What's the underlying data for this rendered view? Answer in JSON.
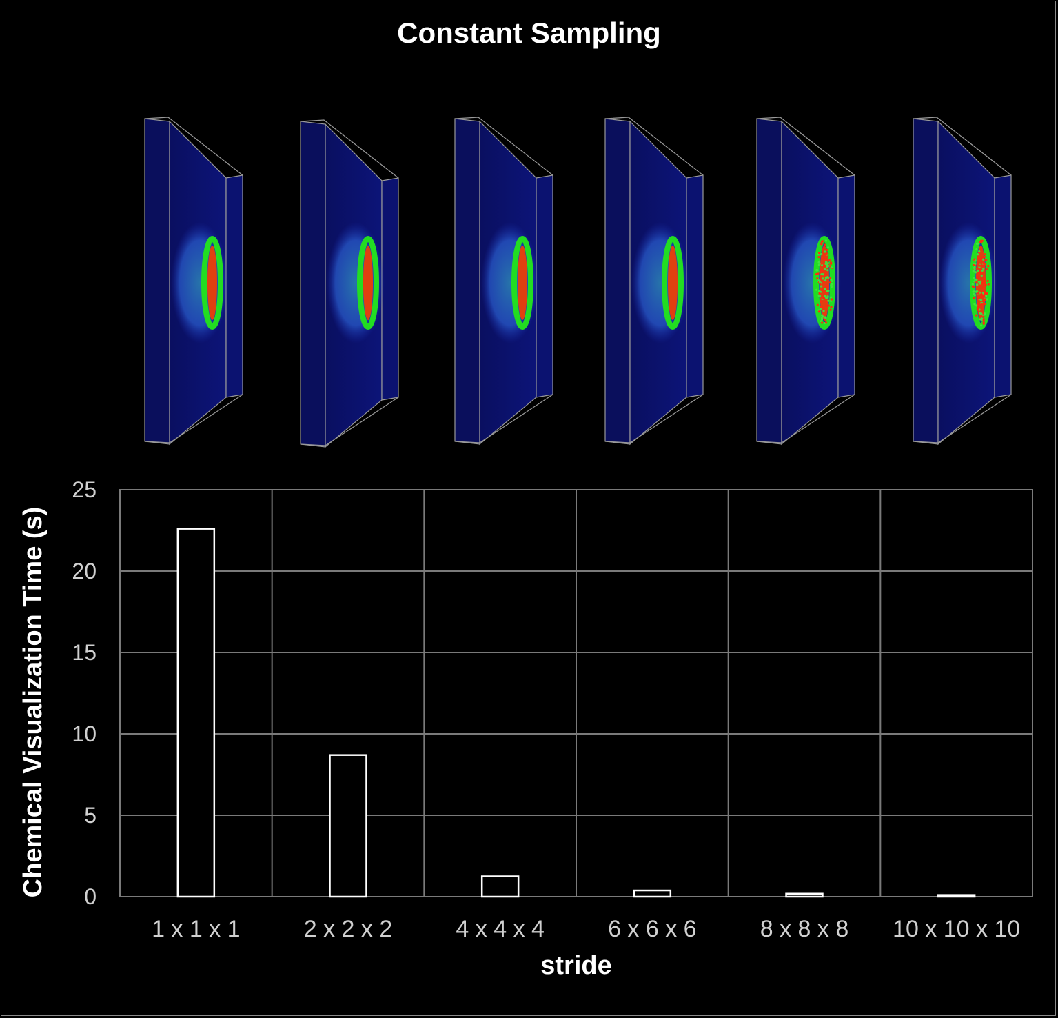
{
  "title": "Constant Sampling",
  "renders": {
    "count": 6,
    "speckled": [
      false,
      false,
      false,
      false,
      true,
      true
    ]
  },
  "chart_data": {
    "type": "bar",
    "categories": [
      "1 x 1 x 1",
      "2 x 2 x 2",
      "4 x 4 x 4",
      "6 x 6 x 6",
      "8 x 8 x 8",
      "10 x 10 x 10"
    ],
    "values": [
      22.6,
      8.7,
      1.25,
      0.38,
      0.18,
      0.1
    ],
    "xlabel": "stride",
    "ylabel": "Chemical Visualization Time (s)",
    "ylim": [
      0,
      25
    ],
    "yticks": [
      0,
      5,
      10,
      15,
      20,
      25
    ],
    "grid": true,
    "bar_style": "outlined",
    "colors": {
      "background": "#000000",
      "bar_outline": "#ffffff",
      "grid": "#7a7a7a",
      "tick_text": "#d0d0d0",
      "title_text": "#ffffff"
    }
  }
}
